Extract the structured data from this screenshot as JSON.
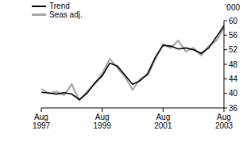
{
  "chart_data": {
    "type": "line",
    "ylabel": "'000",
    "categories": [
      "Aug 1997",
      null,
      null,
      null,
      null,
      null,
      null,
      null,
      "Aug 1999",
      null,
      null,
      null,
      null,
      null,
      null,
      null,
      "Aug 2001",
      null,
      null,
      null,
      null,
      null,
      null,
      null,
      "Aug 2003"
    ],
    "series": [
      {
        "name": "Trend",
        "color": "#000000",
        "values": [
          40.3,
          40.1,
          39.8,
          40.2,
          39.8,
          38.3,
          40,
          42.8,
          44.8,
          48.3,
          47.5,
          45,
          42.5,
          43.5,
          45.5,
          50,
          53.2,
          53,
          52.2,
          52.5,
          52,
          51,
          52.5,
          55.5,
          58.6
        ]
      },
      {
        "name": "Seas adj.",
        "color": "#a6a6a6",
        "values": [
          41.2,
          40,
          40.5,
          39.5,
          42.5,
          38,
          40.5,
          42.5,
          45.5,
          49.5,
          47,
          44.5,
          41,
          44,
          45,
          49.5,
          53.5,
          52.5,
          54.5,
          51.5,
          52.5,
          50.5,
          53,
          54.5,
          58
        ]
      }
    ],
    "ylim": [
      36,
      60
    ],
    "yticks": [
      36,
      40,
      44,
      48,
      52,
      56,
      60
    ]
  }
}
